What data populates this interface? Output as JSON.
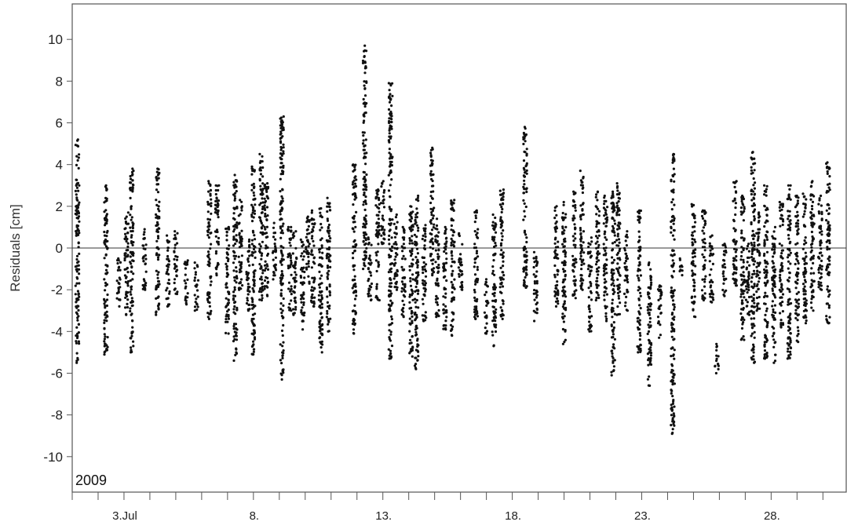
{
  "chart_data": {
    "type": "scatter",
    "title": "",
    "xlabel": "",
    "ylabel": "Residuals [cm]",
    "year_label": "2009",
    "x_unit": "day of July 2009",
    "xlim": [
      1,
      30.9
    ],
    "ylim": [
      -11.7,
      11.7
    ],
    "yticks": [
      10,
      8,
      6,
      4,
      2,
      0,
      -2,
      -4,
      -6,
      -8,
      -10
    ],
    "ytick_labels": [
      "10",
      "8",
      "6",
      "4",
      "2",
      "0",
      "-2",
      "-4",
      "-6",
      "-8",
      "-10"
    ],
    "xticks_major": [
      3,
      8,
      13,
      18,
      23,
      28
    ],
    "xtick_labels": [
      "3.Jul",
      "8.",
      "13.",
      "18.",
      "23.",
      "28."
    ],
    "xticks_minor": [
      1,
      2,
      3,
      4,
      5,
      6,
      7,
      8,
      9,
      10,
      11,
      12,
      13,
      14,
      15,
      16,
      17,
      18,
      19,
      20,
      21,
      22,
      23,
      24,
      25,
      26,
      27,
      28,
      29,
      30
    ],
    "zero_line": 0,
    "grid": false,
    "marker_color": "#111111",
    "series": [
      {
        "clusters": [
          {
            "x": 1.2,
            "min": -5.5,
            "max": 5.2
          },
          {
            "x": 2.3,
            "min": -5.1,
            "max": 3.0
          },
          {
            "x": 2.8,
            "min": -2.8,
            "max": -0.5
          },
          {
            "x": 3.1,
            "min": -3.2,
            "max": 1.7
          },
          {
            "x": 3.3,
            "min": -5.0,
            "max": 3.8
          },
          {
            "x": 3.8,
            "min": -2.0,
            "max": 0.9
          },
          {
            "x": 4.3,
            "min": -3.2,
            "max": 3.8
          },
          {
            "x": 4.7,
            "min": -2.8,
            "max": 0.6
          },
          {
            "x": 5.0,
            "min": -2.2,
            "max": 0.8
          },
          {
            "x": 5.4,
            "min": -2.7,
            "max": -0.6
          },
          {
            "x": 5.8,
            "min": -3.0,
            "max": -0.7
          },
          {
            "x": 6.3,
            "min": -3.4,
            "max": 3.2
          },
          {
            "x": 6.6,
            "min": -1.3,
            "max": 3.0
          },
          {
            "x": 7.0,
            "min": -4.1,
            "max": 1.0
          },
          {
            "x": 7.3,
            "min": -5.4,
            "max": 3.5
          },
          {
            "x": 7.5,
            "min": -2.0,
            "max": 2.3
          },
          {
            "x": 7.8,
            "min": -3.0,
            "max": 0.4
          },
          {
            "x": 8.0,
            "min": -5.1,
            "max": 3.9
          },
          {
            "x": 8.3,
            "min": -2.5,
            "max": 4.5
          },
          {
            "x": 8.5,
            "min": -2.3,
            "max": 3.1
          },
          {
            "x": 8.8,
            "min": -1.5,
            "max": 1.2
          },
          {
            "x": 9.1,
            "min": -6.3,
            "max": 6.3
          },
          {
            "x": 9.4,
            "min": -3.0,
            "max": 1.0
          },
          {
            "x": 9.6,
            "min": -3.2,
            "max": 0.8
          },
          {
            "x": 9.9,
            "min": -3.9,
            "max": 0.4
          },
          {
            "x": 10.1,
            "min": -1.7,
            "max": 1.5
          },
          {
            "x": 10.3,
            "min": -2.8,
            "max": 1.8
          },
          {
            "x": 10.6,
            "min": -5.0,
            "max": 1.9
          },
          {
            "x": 10.9,
            "min": -4.0,
            "max": 2.4
          },
          {
            "x": 11.9,
            "min": -4.1,
            "max": 4.0
          },
          {
            "x": 12.3,
            "min": -1.0,
            "max": 9.7
          },
          {
            "x": 12.5,
            "min": -2.5,
            "max": 0.5
          },
          {
            "x": 12.8,
            "min": -2.5,
            "max": 2.8
          },
          {
            "x": 13.0,
            "min": 0.2,
            "max": 3.2
          },
          {
            "x": 13.3,
            "min": -5.3,
            "max": 7.9
          },
          {
            "x": 13.5,
            "min": -2.0,
            "max": 1.6
          },
          {
            "x": 13.8,
            "min": -3.3,
            "max": 1.0
          },
          {
            "x": 14.1,
            "min": -5.2,
            "max": 2.0
          },
          {
            "x": 14.3,
            "min": -5.8,
            "max": 2.5
          },
          {
            "x": 14.6,
            "min": -3.5,
            "max": 1.1
          },
          {
            "x": 14.9,
            "min": -1.3,
            "max": 4.8
          },
          {
            "x": 15.1,
            "min": -3.3,
            "max": 1.4
          },
          {
            "x": 15.4,
            "min": -3.9,
            "max": 1.0
          },
          {
            "x": 15.7,
            "min": -4.2,
            "max": 2.3
          },
          {
            "x": 16.0,
            "min": -2.0,
            "max": 0.7
          },
          {
            "x": 16.6,
            "min": -3.4,
            "max": 1.8
          },
          {
            "x": 17.0,
            "min": -4.1,
            "max": -1.5
          },
          {
            "x": 17.3,
            "min": -4.7,
            "max": 1.6
          },
          {
            "x": 17.6,
            "min": -3.4,
            "max": 2.8
          },
          {
            "x": 18.5,
            "min": -1.9,
            "max": 5.8
          },
          {
            "x": 18.9,
            "min": -3.5,
            "max": -0.2
          },
          {
            "x": 19.7,
            "min": -2.8,
            "max": 2.0
          },
          {
            "x": 20.0,
            "min": -4.6,
            "max": 2.2
          },
          {
            "x": 20.4,
            "min": -2.4,
            "max": 2.7
          },
          {
            "x": 20.7,
            "min": -2.0,
            "max": 3.7
          },
          {
            "x": 21.0,
            "min": -4.0,
            "max": 0.5
          },
          {
            "x": 21.3,
            "min": -2.5,
            "max": 2.7
          },
          {
            "x": 21.6,
            "min": -3.5,
            "max": 2.5
          },
          {
            "x": 21.9,
            "min": -6.1,
            "max": 2.7
          },
          {
            "x": 22.1,
            "min": -3.2,
            "max": 3.1
          },
          {
            "x": 22.4,
            "min": -3.0,
            "max": 0.8
          },
          {
            "x": 22.9,
            "min": -5.0,
            "max": 1.8
          },
          {
            "x": 23.3,
            "min": -6.6,
            "max": -0.7
          },
          {
            "x": 23.7,
            "min": -4.3,
            "max": -1.8
          },
          {
            "x": 24.2,
            "min": -8.9,
            "max": 4.5
          },
          {
            "x": 24.5,
            "min": -1.3,
            "max": -0.5
          },
          {
            "x": 25.0,
            "min": -3.3,
            "max": 2.1
          },
          {
            "x": 25.4,
            "min": -2.5,
            "max": 1.8
          },
          {
            "x": 25.7,
            "min": -2.6,
            "max": 0.6
          },
          {
            "x": 25.9,
            "min": -6.0,
            "max": -4.6
          },
          {
            "x": 26.2,
            "min": -2.3,
            "max": 0.2
          },
          {
            "x": 26.6,
            "min": -1.8,
            "max": 3.2
          },
          {
            "x": 26.9,
            "min": -4.4,
            "max": 2.5
          },
          {
            "x": 27.1,
            "min": -3.2,
            "max": 0.2
          },
          {
            "x": 27.3,
            "min": -5.5,
            "max": 4.6
          },
          {
            "x": 27.5,
            "min": -3.0,
            "max": 1.7
          },
          {
            "x": 27.8,
            "min": -5.3,
            "max": 3.0
          },
          {
            "x": 28.1,
            "min": -5.5,
            "max": 1.0
          },
          {
            "x": 28.4,
            "min": -3.8,
            "max": 2.2
          },
          {
            "x": 28.7,
            "min": -5.3,
            "max": 3.0
          },
          {
            "x": 29.0,
            "min": -4.5,
            "max": 2.5
          },
          {
            "x": 29.3,
            "min": -3.6,
            "max": 2.6
          },
          {
            "x": 29.6,
            "min": -3.0,
            "max": 3.2
          },
          {
            "x": 29.9,
            "min": -2.0,
            "max": 2.5
          },
          {
            "x": 30.2,
            "min": -3.6,
            "max": 4.1
          }
        ]
      }
    ]
  }
}
